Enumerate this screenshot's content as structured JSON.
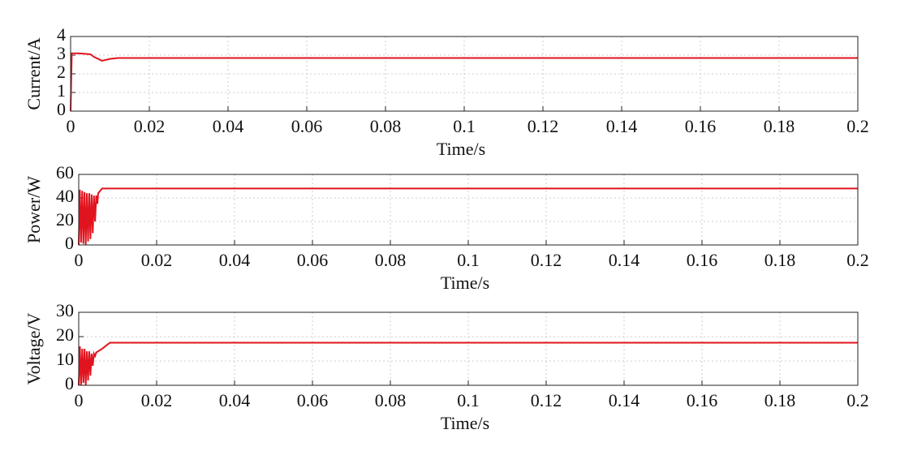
{
  "chart_data": [
    {
      "type": "line",
      "ylabel": "Current/A",
      "xlabel": "Time/s",
      "x": [
        0,
        0.0003,
        0.002,
        0.005,
        0.006,
        0.008,
        0.01,
        0.012,
        0.2
      ],
      "values": [
        0,
        3.1,
        3.1,
        3.05,
        2.9,
        2.7,
        2.8,
        2.85,
        2.85
      ],
      "color": "#e0141e",
      "xlim": [
        0,
        0.2
      ],
      "ylim": [
        0,
        4
      ],
      "xticks": [
        0,
        0.02,
        0.04,
        0.06,
        0.08,
        0.1,
        0.12,
        0.14,
        0.16,
        0.18,
        0.2
      ],
      "yticks": [
        0,
        1,
        2,
        3,
        4
      ],
      "grid": true
    },
    {
      "type": "line",
      "ylabel": "Power/W",
      "xlabel": "Time/s",
      "x": [
        0,
        0.0003,
        0.0006,
        0.0009,
        0.0012,
        0.0015,
        0.0018,
        0.0021,
        0.0024,
        0.0027,
        0.003,
        0.0033,
        0.0036,
        0.0039,
        0.0042,
        0.0045,
        0.0048,
        0.005,
        0.006,
        0.2
      ],
      "values": [
        0,
        47,
        2,
        46,
        1,
        45,
        0,
        44,
        3,
        44,
        5,
        43,
        10,
        42,
        20,
        42,
        35,
        44,
        48,
        48
      ],
      "color": "#e0141e",
      "xlim": [
        0,
        0.2
      ],
      "ylim": [
        0,
        60
      ],
      "xticks": [
        0,
        0.02,
        0.04,
        0.06,
        0.08,
        0.1,
        0.12,
        0.14,
        0.16,
        0.18,
        0.2
      ],
      "yticks": [
        0,
        20,
        40,
        60
      ],
      "grid": true
    },
    {
      "type": "line",
      "ylabel": "Voltage/V",
      "xlabel": "Time/s",
      "x": [
        0,
        0.0003,
        0.0006,
        0.0009,
        0.0012,
        0.0015,
        0.0018,
        0.0021,
        0.0024,
        0.0027,
        0.003,
        0.0033,
        0.0036,
        0.0039,
        0.0042,
        0.0045,
        0.006,
        0.008,
        0.009,
        0.2
      ],
      "values": [
        0,
        16,
        0,
        15,
        1,
        15,
        0,
        14,
        2,
        14,
        4,
        13,
        8,
        13,
        12,
        13.5,
        15,
        17.5,
        17.5,
        17.5
      ],
      "color": "#e0141e",
      "xlim": [
        0,
        0.2
      ],
      "ylim": [
        0,
        30
      ],
      "xticks": [
        0,
        0.02,
        0.04,
        0.06,
        0.08,
        0.1,
        0.12,
        0.14,
        0.16,
        0.18,
        0.2
      ],
      "yticks": [
        0,
        10,
        20,
        30
      ],
      "grid": true
    }
  ]
}
